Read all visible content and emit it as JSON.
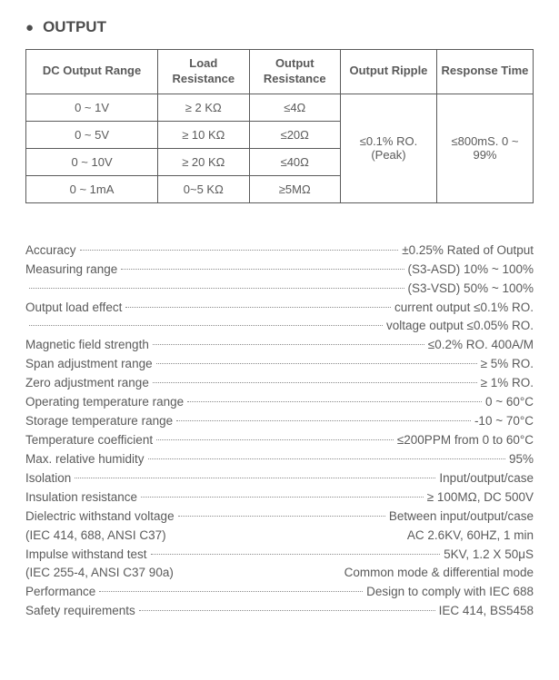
{
  "title": "OUTPUT",
  "table": {
    "headers": {
      "range": "DC  Output  Range",
      "load_res": "Load Resistance",
      "out_res": "Output Resistance",
      "ripple": "Output Ripple",
      "resp": "Response Time"
    },
    "rows": [
      {
        "range": "0 ~ 1V",
        "load": "≥ 2 KΩ",
        "out": "≤4Ω"
      },
      {
        "range": "0 ~ 5V",
        "load": "≥ 10 KΩ",
        "out": "≤20Ω"
      },
      {
        "range": "0 ~ 10V",
        "load": "≥ 20 KΩ",
        "out": "≤40Ω"
      },
      {
        "range": "0 ~ 1mA",
        "load": "0~5 KΩ",
        "out": "≥5MΩ"
      }
    ],
    "ripple": "≤0.1% RO. (Peak)",
    "response": "≤800mS. 0 ~ 99%"
  },
  "specs": [
    {
      "label": "Accuracy",
      "value": "±0.25% Rated of  Output"
    },
    {
      "label": "Measuring  range",
      "value": "(S3-ASD) 10%  ~  100%"
    },
    {
      "label": "",
      "value": "(S3-VSD) 50%  ~  100%"
    },
    {
      "label": "Output  load  effect",
      "value": "current output ≤0.1%  RO."
    },
    {
      "label": "",
      "value": "voltage output  ≤0.05% RO."
    },
    {
      "label": "Magnetic field strength",
      "value": "≤0.2%  RO.  400A/M"
    },
    {
      "label": "Span adjustment range",
      "value": "≥ 5% RO."
    },
    {
      "label": "Zero adjustment range",
      "value": "≥ 1% RO."
    },
    {
      "label": "Operating temperature range",
      "value": "0 ~ 60°C"
    },
    {
      "label": "Storage temperature range",
      "value": "-10 ~ 70°C"
    },
    {
      "label": "Temperature coefficient",
      "value": "≤200PPM from 0 to 60°C"
    },
    {
      "label": "Max. relative humidity",
      "value": "95%"
    },
    {
      "label": "Isolation",
      "value": "Input/output/case"
    },
    {
      "label": "Insulation resistance",
      "value": "≥ 100MΩ, DC 500V"
    },
    {
      "label": "Dielectric withstand voltage",
      "value": "Between input/output/case"
    },
    {
      "label": "(IEC 414, 688, ANSI C37)",
      "value": "AC 2.6KV, 60HZ, 1 min",
      "nodots": true
    },
    {
      "label": "Impulse withstand test",
      "value": "5KV,  1.2 X 50μS"
    },
    {
      "label": "(IEC 255-4, ANSI C37 90a)",
      "value": "Common mode  & differential mode",
      "nodots": true
    },
    {
      "label": "Performance",
      "value": "Design to comply with IEC 688"
    },
    {
      "label": "Safety requirements",
      "value": "IEC  414, BS5458"
    }
  ],
  "colors": {
    "text": "#5a5a5a",
    "border": "#5a5a5a",
    "bg": "#ffffff",
    "dots": "#8a8a8a"
  },
  "fonts": {
    "body_pt": 13.5,
    "title_pt": 17
  }
}
